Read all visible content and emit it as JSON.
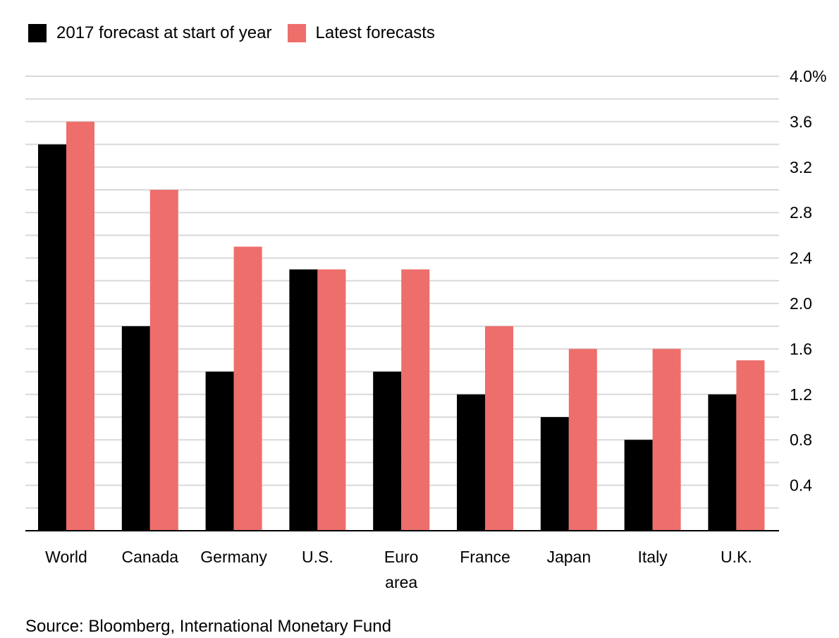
{
  "legend": {
    "items": [
      {
        "label": "2017 forecast at start of year",
        "color": "#000000"
      },
      {
        "label": "Latest forecasts",
        "color": "#ee6e6b"
      }
    ]
  },
  "source": "Source: Bloomberg, International Monetary Fund",
  "chart_data": {
    "type": "bar",
    "categories": [
      "World",
      "Canada",
      "Germany",
      "U.S.",
      "Euro area",
      "France",
      "Japan",
      "Italy",
      "U.K."
    ],
    "series": [
      {
        "name": "2017 forecast at start of year",
        "color": "#000000",
        "values": [
          3.4,
          1.8,
          1.4,
          2.3,
          1.4,
          1.2,
          1.0,
          0.8,
          1.2
        ]
      },
      {
        "name": "Latest forecasts",
        "color": "#ee6e6b",
        "values": [
          3.6,
          3.0,
          2.5,
          2.3,
          2.3,
          1.8,
          1.6,
          1.6,
          1.5
        ]
      }
    ],
    "y_ticks": [
      {
        "value": 4.0,
        "label": "4.0%"
      },
      {
        "value": 3.6,
        "label": "3.6"
      },
      {
        "value": 3.2,
        "label": "3.2"
      },
      {
        "value": 2.8,
        "label": "2.8"
      },
      {
        "value": 2.4,
        "label": "2.4"
      },
      {
        "value": 2.0,
        "label": "2.0"
      },
      {
        "value": 1.6,
        "label": "1.6"
      },
      {
        "value": 1.2,
        "label": "1.2"
      },
      {
        "value": 0.8,
        "label": "0.8"
      },
      {
        "value": 0.4,
        "label": "0.4"
      }
    ],
    "ylim": [
      0,
      4.0
    ],
    "grid_step": 0.2,
    "grid": true,
    "y_axis_position": "right",
    "legend_position": "top-left",
    "title": "",
    "xlabel": "",
    "ylabel": ""
  }
}
